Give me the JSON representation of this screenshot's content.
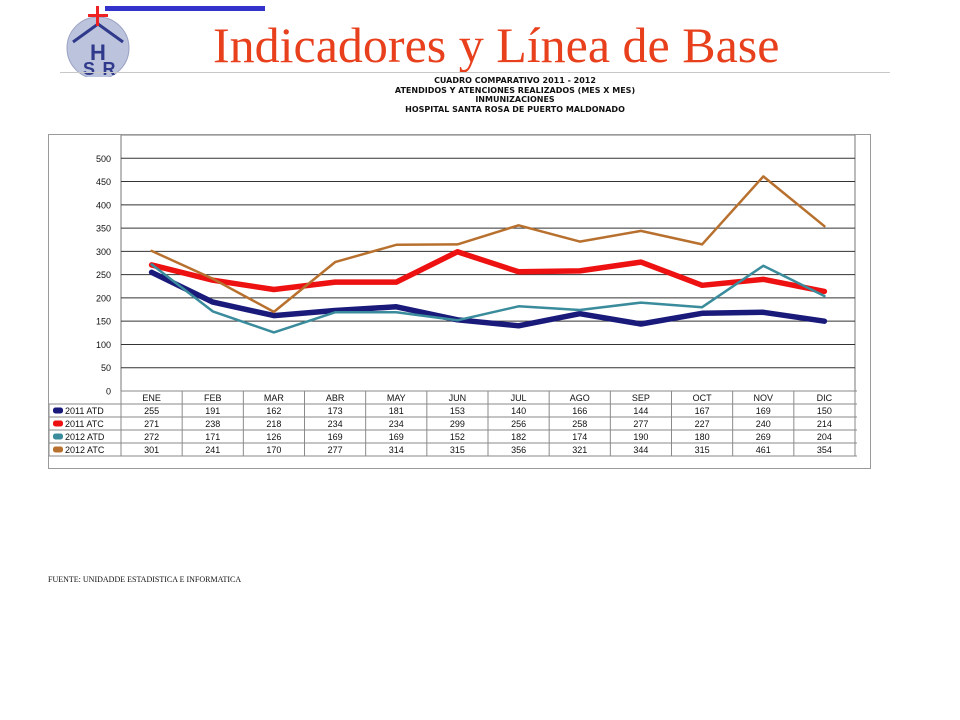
{
  "header": {
    "title": "Indicadores y Línea de Base",
    "logo_text": [
      "H",
      "S",
      "R"
    ]
  },
  "chart_header": {
    "lines": [
      "CUADRO COMPARATIVO 2011 - 2012",
      "ATENDIDOS Y ATENCIONES  REALIZADOS (MES X MES)",
      "INMUNIZACIONES",
      "HOSPITAL SANTA ROSA DE PUERTO MALDONADO"
    ]
  },
  "chart_data": {
    "type": "line",
    "title": "CUADRO COMPARATIVO 2011 - 2012",
    "categories": [
      "ENE",
      "FEB",
      "MAR",
      "ABR",
      "MAY",
      "JUN",
      "JUL",
      "AGO",
      "SEP",
      "OCT",
      "NOV",
      "DIC"
    ],
    "y_ticks": [
      0,
      50,
      100,
      150,
      200,
      250,
      300,
      350,
      400,
      450,
      500
    ],
    "ylim": [
      0,
      550
    ],
    "grid": true,
    "legend": "data-table-below",
    "series": [
      {
        "name": "2011 ATD",
        "color": "#1a1a7a",
        "width": "heavy",
        "values": [
          255,
          191,
          162,
          173,
          181,
          153,
          140,
          166,
          144,
          167,
          169,
          150
        ]
      },
      {
        "name": "2011 ATC",
        "color": "#ee1111",
        "width": "heavy",
        "values": [
          271,
          238,
          218,
          234,
          234,
          299,
          256,
          258,
          277,
          227,
          240,
          214
        ]
      },
      {
        "name": "2012 ATD",
        "color": "#3a8c9c",
        "width": "normal",
        "values": [
          272,
          171,
          126,
          169,
          169,
          152,
          182,
          174,
          190,
          180,
          269,
          204
        ]
      },
      {
        "name": "2012 ATC",
        "color": "#b8702e",
        "width": "normal",
        "values": [
          301,
          241,
          170,
          277,
          314,
          315,
          356,
          321,
          344,
          315,
          461,
          354
        ]
      }
    ]
  },
  "footer": {
    "source": "FUENTE: UNIDADDE ESTADISTICA E INFORMATICA"
  }
}
